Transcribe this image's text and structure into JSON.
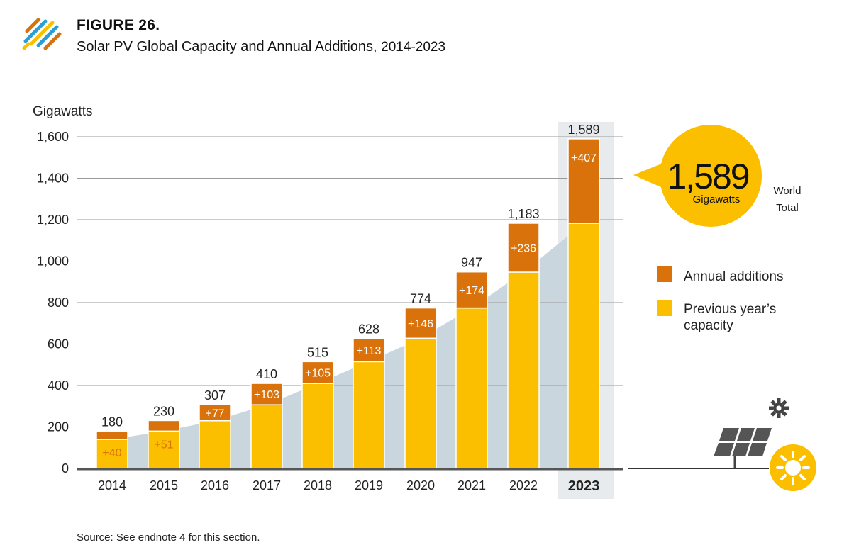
{
  "header": {
    "figure_label": "FIGURE 26.",
    "title_main": "Solar PV Global Capacity and Annual Additions,",
    "title_range": "2014-2023"
  },
  "source": "Source: See endnote 4 for this section.",
  "callout": {
    "value": "1,589",
    "unit": "Gigawatts",
    "note_line1": "World",
    "note_line2": "Total"
  },
  "colors": {
    "annual_additions": "#d9720b",
    "previous_capacity": "#fbbf00",
    "trend_area": "#c9d6de",
    "highlight_band": "#e8ebee"
  },
  "chart_data": {
    "type": "bar",
    "stacked": true,
    "ylabel": "Gigawatts",
    "ylim": [
      0,
      1600
    ],
    "yticks": [
      0,
      200,
      400,
      600,
      800,
      1000,
      1200,
      1400,
      1600
    ],
    "ytick_labels": [
      "0",
      "200",
      "400",
      "600",
      "800",
      "1,000",
      "1,200",
      "1,400",
      "1,600"
    ],
    "categories": [
      "2014",
      "2015",
      "2016",
      "2017",
      "2018",
      "2019",
      "2020",
      "2021",
      "2022",
      "2023"
    ],
    "highlight_category": "2023",
    "series": [
      {
        "name": "Previous year’s capacity",
        "values": [
          140,
          180,
          230,
          307,
          410,
          515,
          628,
          774,
          947,
          1183
        ]
      },
      {
        "name": "Annual additions",
        "values": [
          40,
          51,
          77,
          103,
          105,
          113,
          146,
          174,
          236,
          407
        ]
      }
    ],
    "total_labels": [
      "180",
      "230",
      "307",
      "410",
      "515",
      "628",
      "774",
      "947",
      "1,183",
      "1,589"
    ],
    "addition_labels": [
      "+40",
      "+51",
      "+77",
      "+103",
      "+105",
      "+113",
      "+146",
      "+174",
      "+236",
      "+407"
    ],
    "legend": [
      "Annual additions",
      "Previous year’s capacity"
    ],
    "legend_position": "right",
    "grid": true
  }
}
